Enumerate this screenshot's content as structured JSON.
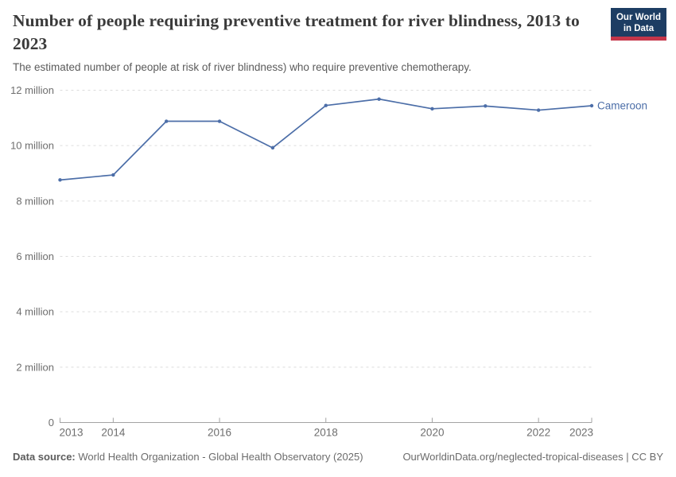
{
  "header": {
    "title": "Number of people requiring preventive treatment for river blindness, 2013 to 2023",
    "subtitle": "The estimated number of people at risk of river blindness) who require preventive chemotherapy.",
    "logo": {
      "line1": "Our World",
      "line2": "in Data"
    }
  },
  "colors": {
    "line": "#4c6ea8",
    "logo_bg": "#1d3d63",
    "logo_bar": "#c5364a",
    "grid": "#dcdcdc",
    "axis": "#a3a3a3",
    "tick_text": "#6e6e6e",
    "title_text": "#3a3a3a",
    "subtitle_text": "#5b5b5b"
  },
  "axis": {
    "y_ticks": [
      {
        "label": "12 million",
        "value": 12000000
      },
      {
        "label": "10 million",
        "value": 10000000
      },
      {
        "label": "8 million",
        "value": 8000000
      },
      {
        "label": "6 million",
        "value": 6000000
      },
      {
        "label": "4 million",
        "value": 4000000
      },
      {
        "label": "2 million",
        "value": 2000000
      },
      {
        "label": "0",
        "value": 0
      }
    ],
    "x_ticks": [
      2013,
      2014,
      2016,
      2018,
      2020,
      2022,
      2023
    ]
  },
  "chart_data": {
    "type": "line",
    "title": "Number of people requiring preventive treatment for river blindness, 2013 to 2023",
    "xlabel": "",
    "ylabel": "",
    "x": [
      2013,
      2014,
      2015,
      2016,
      2017,
      2018,
      2019,
      2020,
      2021,
      2022,
      2023
    ],
    "series": [
      {
        "name": "Cameroon",
        "color": "#4c6ea8",
        "values": [
          8760000,
          8940000,
          10880000,
          10880000,
          9920000,
          11450000,
          11680000,
          11330000,
          11430000,
          11280000,
          11440000
        ]
      }
    ],
    "xlim": [
      2013,
      2023
    ],
    "ylim": [
      0,
      12000000
    ],
    "grid": "dashed-horizontal",
    "legend": "line-end-label"
  },
  "footer": {
    "source_label": "Data source:",
    "source_text": "World Health Organization - Global Health Observatory (2025)",
    "license_text": "OurWorldinData.org/neglected-tropical-diseases | CC BY"
  }
}
